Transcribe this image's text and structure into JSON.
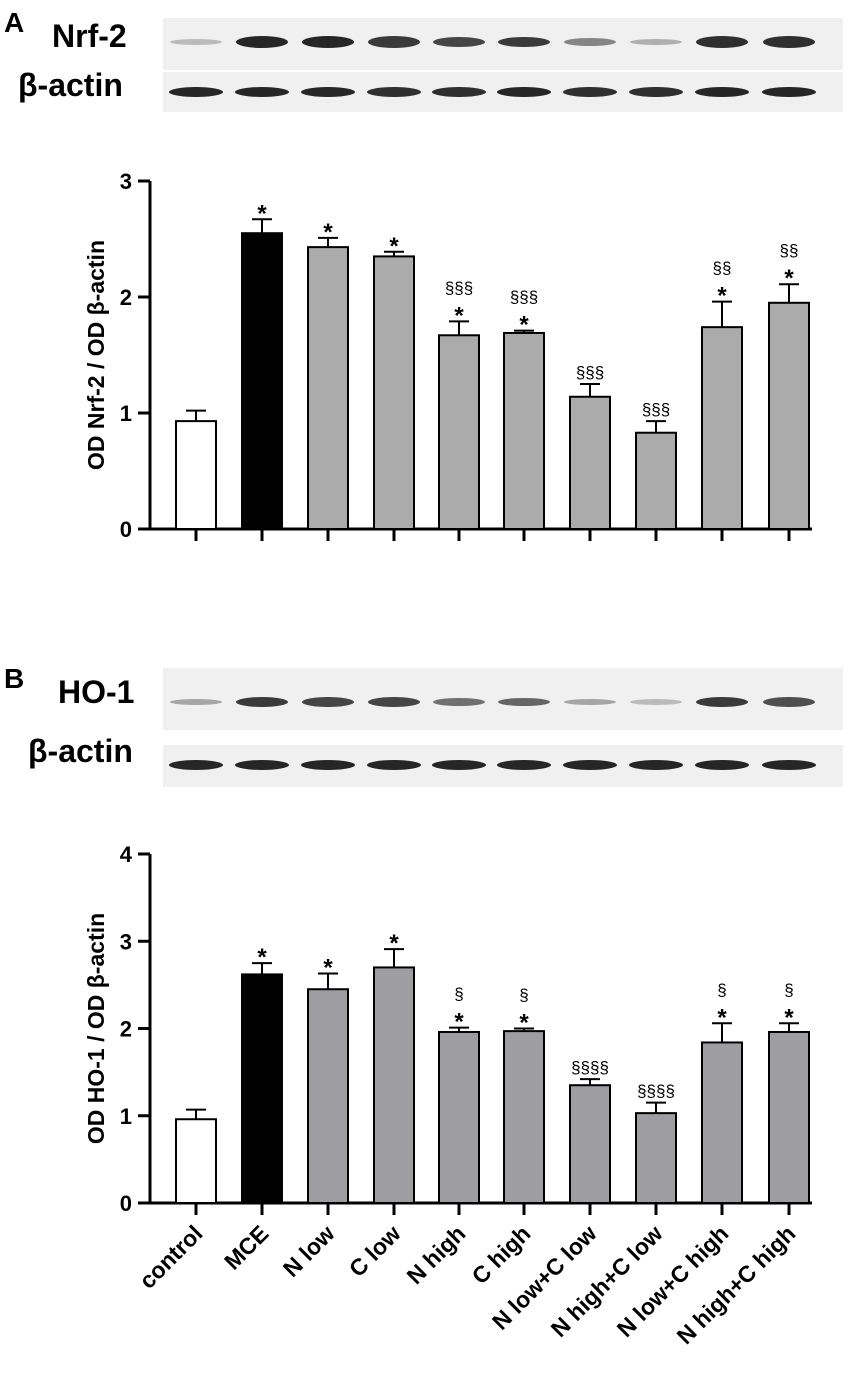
{
  "figure": {
    "panel_a": {
      "letter": "A",
      "blot_labels": [
        "Nrf-2",
        "β-actin"
      ]
    },
    "panel_b": {
      "letter": "B",
      "blot_labels": [
        "HO-1",
        "β-actin"
      ]
    }
  },
  "chart_data": [
    {
      "type": "bar",
      "panel": "A",
      "categories": [
        "control",
        "MCE",
        "N low",
        "C low",
        "N high",
        "C high",
        "N low+C low",
        "N high+C low",
        "N low+C high",
        "N high+C high"
      ],
      "values": [
        0.93,
        2.55,
        2.43,
        2.35,
        1.67,
        1.69,
        1.14,
        0.83,
        1.74,
        1.95
      ],
      "errors": [
        0.09,
        0.12,
        0.08,
        0.04,
        0.12,
        0.02,
        0.11,
        0.1,
        0.22,
        0.16
      ],
      "bar_colors": [
        "#ffffff",
        "#000000",
        "#ababab",
        "#ababab",
        "#ababab",
        "#ababab",
        "#ababab",
        "#ababab",
        "#ababab",
        "#ababab"
      ],
      "annotations": [
        {
          "star": "",
          "section": ""
        },
        {
          "star": "*",
          "section": ""
        },
        {
          "star": "*",
          "section": ""
        },
        {
          "star": "*",
          "section": ""
        },
        {
          "star": "*",
          "section": "§§§"
        },
        {
          "star": "*",
          "section": "§§§"
        },
        {
          "star": "",
          "section": "§§§"
        },
        {
          "star": "",
          "section": "§§§"
        },
        {
          "star": "*",
          "section": "§§"
        },
        {
          "star": "*",
          "section": "§§"
        }
      ],
      "ylabel": "OD Nrf-2 / OD β-actin",
      "ylim": [
        0,
        3
      ],
      "yticks": [
        "0",
        "1",
        "2",
        "3"
      ],
      "grid": false
    },
    {
      "type": "bar",
      "panel": "B",
      "categories": [
        "control",
        "MCE",
        "N low",
        "C low",
        "N high",
        "C high",
        "N low+C low",
        "N high+C low",
        "N low+C high",
        "N high+C high"
      ],
      "values": [
        0.96,
        2.62,
        2.45,
        2.7,
        1.96,
        1.97,
        1.35,
        1.03,
        1.84,
        1.96
      ],
      "errors": [
        0.11,
        0.13,
        0.18,
        0.21,
        0.05,
        0.03,
        0.07,
        0.12,
        0.22,
        0.1
      ],
      "bar_colors": [
        "#ffffff",
        "#000000",
        "#9e9ea2",
        "#9e9ea2",
        "#9e9ea2",
        "#9e9ea2",
        "#9e9ea2",
        "#9e9ea2",
        "#9e9ea2",
        "#9e9ea2"
      ],
      "annotations": [
        {
          "star": "",
          "section": ""
        },
        {
          "star": "*",
          "section": ""
        },
        {
          "star": "*",
          "section": ""
        },
        {
          "star": "*",
          "section": ""
        },
        {
          "star": "*",
          "section": "§"
        },
        {
          "star": "*",
          "section": "§"
        },
        {
          "star": "",
          "section": "§§§§"
        },
        {
          "star": "",
          "section": "§§§§"
        },
        {
          "star": "*",
          "section": "§"
        },
        {
          "star": "*",
          "section": "§"
        }
      ],
      "ylabel": "OD HO-1 / OD β-actin",
      "ylim": [
        0,
        4
      ],
      "yticks": [
        "0",
        "1",
        "2",
        "3",
        "4"
      ],
      "grid": false
    }
  ]
}
